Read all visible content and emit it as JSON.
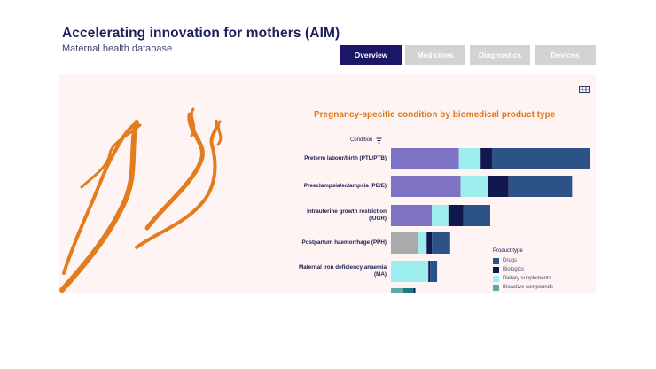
{
  "header": {
    "title": "Accelerating innovation for mothers (AIM)",
    "subtitle": "Maternal health database"
  },
  "tabs": [
    {
      "label": "Overview",
      "active": true
    },
    {
      "label": "Medicines",
      "active": false
    },
    {
      "label": "Diagnostics",
      "active": false
    },
    {
      "label": "Devices",
      "active": false
    }
  ],
  "toolbar": {
    "view_data_icon": "table-icon"
  },
  "filter": {
    "label": "Condition",
    "icon": "filter-sort-icon"
  },
  "colors": {
    "accent": "#e07618",
    "active_tab": "#1c1668",
    "inactive_tab": "#d3d3d6",
    "panel_bg": "#fdf4f3"
  },
  "legend": {
    "title": "Product type",
    "items": [
      {
        "label": "Drugs",
        "color": "#2d5286"
      },
      {
        "label": "Biologics",
        "color": "#11184e"
      },
      {
        "label": "Dietary supplements",
        "color": "#9eeef0"
      },
      {
        "label": "Bioactive compounds",
        "color": "#5ea8a7"
      }
    ]
  },
  "chart_data": {
    "type": "bar",
    "orientation": "horizontal",
    "stacked": true,
    "title": "Pregnancy-specific condition by biomedical product type",
    "categories": [
      "Preterm labour/birth (PTL/PTB)",
      "Preeclampsia/eclampsia (PE/E)",
      "Intrauterine growth restriction (IUGR)",
      "Postpartum haemorrhage (PPH)",
      "Maternal iron deficiency anaemia (MA)",
      ""
    ],
    "series": [
      {
        "color": "#7d72c4",
        "values": [
          78,
          80,
          47,
          0,
          0,
          0
        ]
      },
      {
        "color": "#a8abaa",
        "values": [
          0,
          0,
          0,
          31,
          0,
          0
        ]
      },
      {
        "name": "Dietary supplements",
        "color": "#9eeef0",
        "values": [
          25,
          31,
          19,
          10,
          43,
          0
        ]
      },
      {
        "name": "Bioactive compounds",
        "color": "#5ea8a7",
        "values": [
          0,
          0,
          0,
          0,
          0,
          14
        ]
      },
      {
        "color": "#1f7a88",
        "values": [
          0,
          0,
          0,
          0,
          0,
          12
        ]
      },
      {
        "name": "Biologics",
        "color": "#11184e",
        "values": [
          13,
          24,
          17,
          6,
          2,
          2
        ]
      },
      {
        "name": "Drugs",
        "color": "#2d5286",
        "values": [
          112,
          73,
          31,
          21,
          8,
          0
        ]
      }
    ],
    "xlim": [
      0,
      228
    ],
    "legend_position": "bottom-right",
    "grid": false
  }
}
